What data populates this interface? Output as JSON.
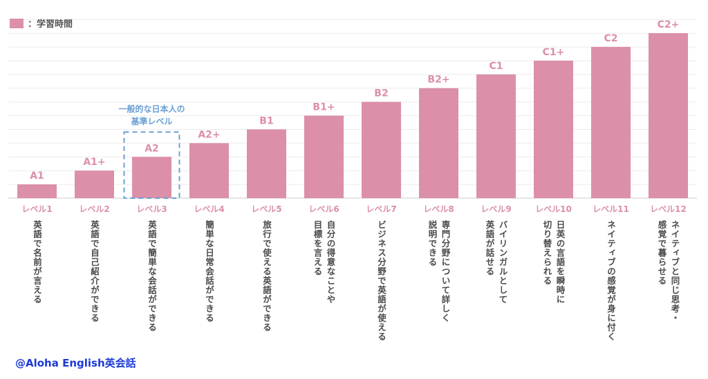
{
  "legend": {
    "label": "学習時間",
    "swatch_color": "#dc8fa8"
  },
  "watermark": "@Aloha English英会話",
  "annotation": {
    "lines": [
      "一般的な日本人の",
      "基準レベル"
    ],
    "color": "#6a9fd4",
    "target_index": 2
  },
  "colors": {
    "bar": "#dc8fa8",
    "label": "#dc8fa8",
    "grid": "#ebebeb",
    "axis": "#cccccc"
  },
  "chart_data": {
    "type": "bar",
    "title": "",
    "xlabel": "",
    "ylabel": "",
    "ylim": [
      0,
      12
    ],
    "grid": true,
    "legend_position": "top-left",
    "categories": [
      "レベル1",
      "レベル2",
      "レベル3",
      "レベル4",
      "レベル5",
      "レベル6",
      "レベル7",
      "レベル8",
      "レベル9",
      "レベル10",
      "レベル11",
      "レベル12"
    ],
    "bar_labels": [
      "A1",
      "A1+",
      "A2",
      "A2+",
      "B1",
      "B1+",
      "B2",
      "B2+",
      "C1",
      "C1+",
      "C2",
      "C2+"
    ],
    "values": [
      1,
      2,
      3,
      4,
      5,
      6,
      7,
      8,
      9,
      10,
      11,
      12
    ],
    "descriptions": [
      [
        "英語で名前が言える"
      ],
      [
        "英語で自己紹介ができる"
      ],
      [
        "英語で簡単な会話ができる"
      ],
      [
        "簡単な日常会話ができる"
      ],
      [
        "旅行で使える英語ができる"
      ],
      [
        "自分の得意なことや",
        "目標を言える"
      ],
      [
        "ビジネス分野で英語が使える"
      ],
      [
        "専門分野について詳しく",
        "説明できる"
      ],
      [
        "バイリンガルとして",
        "英語が話せる"
      ],
      [
        "日英の言語を瞬時に",
        "切り替えられる"
      ],
      [
        "ネイティブの感覚が身に付く"
      ],
      [
        "ネイティブと同じ思考・",
        "感覚で暮らせる"
      ]
    ]
  }
}
